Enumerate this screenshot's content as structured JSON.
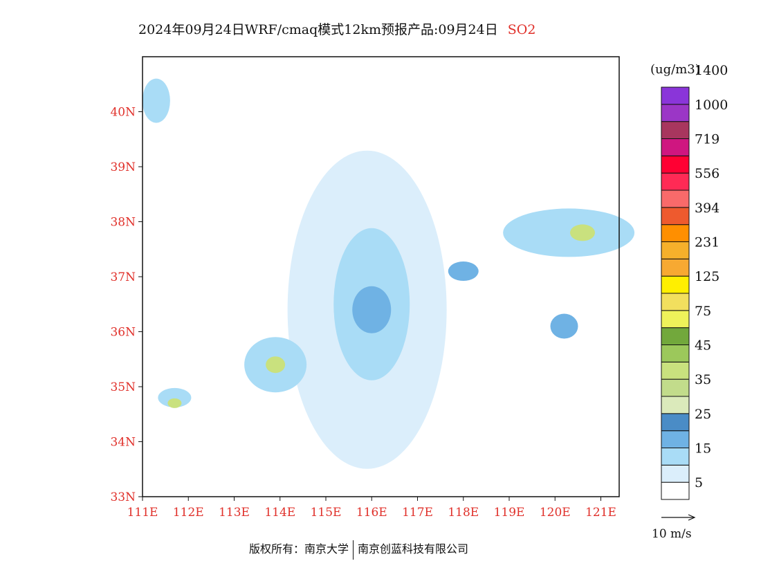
{
  "title": {
    "text": "2024年09月24日WRF/cmaq模式12km预报产品:09月24日",
    "pollutant": "SO2"
  },
  "map": {
    "lon_range": [
      111,
      121.4
    ],
    "lat_range": [
      33,
      41
    ],
    "lon_ticks": [
      "111E",
      "112E",
      "113E",
      "114E",
      "115E",
      "116E",
      "117E",
      "118E",
      "119E",
      "120E",
      "121E"
    ],
    "lat_ticks": [
      "33N",
      "34N",
      "35N",
      "36N",
      "37N",
      "38N",
      "39N",
      "40N"
    ]
  },
  "legend": {
    "unit": "(ug/m3)",
    "colors": [
      "#ffffff",
      "#dbeefb",
      "#a9dcf6",
      "#6fb2e4",
      "#4a8cc6",
      "#dbeabb",
      "#c2dc8b",
      "#c9e17e",
      "#9cc85b",
      "#72a83c",
      "#eef25a",
      "#f2df5e",
      "#ffef00",
      "#f7a932",
      "#f6b02b",
      "#ff8f00",
      "#ee5a2e",
      "#f96a6a",
      "#ff2a55",
      "#ff0033",
      "#cf1680",
      "#a8365e",
      "#9b36c6",
      "#8a35d9"
    ],
    "labels": [
      "5",
      "15",
      "25",
      "35",
      "45",
      "75",
      "125",
      "231",
      "394",
      "556",
      "719",
      "1000",
      "1400"
    ],
    "wind_reference": "10  m/s"
  },
  "footer": {
    "left": "版权所有：南京大学",
    "right": "南京创蓝科技有限公司"
  }
}
